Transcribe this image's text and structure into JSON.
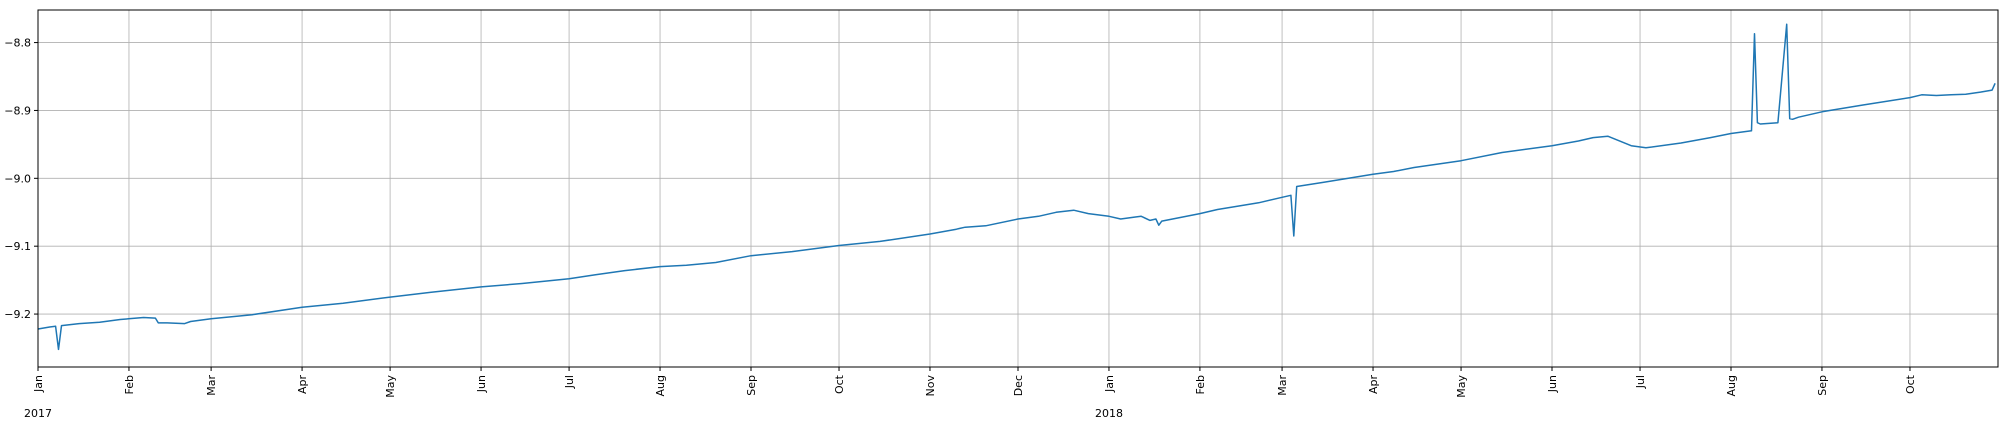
{
  "chart_data": {
    "type": "line",
    "title": "",
    "xlabel": "",
    "ylabel": "",
    "grid": true,
    "legend": "none",
    "colors": {
      "line": "#1f77b4",
      "grid": "#b0b0b0",
      "axes": "#000000"
    },
    "xlim": [
      "2017-01-01",
      "2018-10-31"
    ],
    "ylim": [
      -9.278,
      -8.752
    ],
    "yticks": [
      {
        "value": -8.8,
        "label": "−8.8"
      },
      {
        "value": -8.9,
        "label": "−8.9"
      },
      {
        "value": -9.0,
        "label": "−9.0"
      },
      {
        "value": -9.1,
        "label": "−9.1"
      },
      {
        "value": -9.2,
        "label": "−9.2"
      }
    ],
    "xticks": [
      {
        "date": "2017-01-01",
        "label": "Jan"
      },
      {
        "date": "2017-02-01",
        "label": "Feb"
      },
      {
        "date": "2017-03-01",
        "label": "Mar"
      },
      {
        "date": "2017-04-01",
        "label": "Apr"
      },
      {
        "date": "2017-05-01",
        "label": "May"
      },
      {
        "date": "2017-06-01",
        "label": "Jun"
      },
      {
        "date": "2017-07-01",
        "label": "Jul"
      },
      {
        "date": "2017-08-01",
        "label": "Aug"
      },
      {
        "date": "2017-09-01",
        "label": "Sep"
      },
      {
        "date": "2017-10-01",
        "label": "Oct"
      },
      {
        "date": "2017-11-01",
        "label": "Nov"
      },
      {
        "date": "2017-12-01",
        "label": "Dec"
      },
      {
        "date": "2018-01-01",
        "label": "Jan"
      },
      {
        "date": "2018-02-01",
        "label": "Feb"
      },
      {
        "date": "2018-03-01",
        "label": "Mar"
      },
      {
        "date": "2018-04-01",
        "label": "Apr"
      },
      {
        "date": "2018-05-01",
        "label": "May"
      },
      {
        "date": "2018-06-01",
        "label": "Jun"
      },
      {
        "date": "2018-07-01",
        "label": "Jul"
      },
      {
        "date": "2018-08-01",
        "label": "Aug"
      },
      {
        "date": "2018-09-01",
        "label": "Sep"
      },
      {
        "date": "2018-10-01",
        "label": "Oct"
      }
    ],
    "year_labels": [
      {
        "date": "2017-01-01",
        "label": "2017"
      },
      {
        "date": "2018-01-01",
        "label": "2018"
      }
    ],
    "series": [
      {
        "x": [
          "2017-01-01",
          "2017-01-05",
          "2017-01-07",
          "2017-01-08",
          "2017-01-09",
          "2017-01-15",
          "2017-01-22",
          "2017-01-29",
          "2017-02-06",
          "2017-02-10",
          "2017-02-11",
          "2017-02-14",
          "2017-02-20",
          "2017-02-22",
          "2017-03-01",
          "2017-03-15",
          "2017-04-01",
          "2017-04-15",
          "2017-05-01",
          "2017-05-15",
          "2017-06-01",
          "2017-06-15",
          "2017-07-01",
          "2017-07-10",
          "2017-07-20",
          "2017-08-01",
          "2017-08-10",
          "2017-08-20",
          "2017-09-01",
          "2017-09-15",
          "2017-10-01",
          "2017-10-15",
          "2017-11-01",
          "2017-11-10",
          "2017-11-11",
          "2017-11-13",
          "2017-11-20",
          "2017-12-01",
          "2017-12-08",
          "2017-12-14",
          "2017-12-20",
          "2017-12-25",
          "2018-01-01",
          "2018-01-05",
          "2018-01-10",
          "2018-01-12",
          "2018-01-15",
          "2018-01-17",
          "2018-01-18",
          "2018-01-19",
          "2018-02-01",
          "2018-02-07",
          "2018-02-14",
          "2018-02-21",
          "2018-03-01",
          "2018-03-04",
          "2018-03-05",
          "2018-03-06",
          "2018-03-15",
          "2018-04-01",
          "2018-04-08",
          "2018-04-15",
          "2018-05-01",
          "2018-05-15",
          "2018-06-01",
          "2018-06-10",
          "2018-06-15",
          "2018-06-20",
          "2018-06-28",
          "2018-07-03",
          "2018-07-15",
          "2018-07-25",
          "2018-08-01",
          "2018-08-08",
          "2018-08-09",
          "2018-08-10",
          "2018-08-11",
          "2018-08-17",
          "2018-08-20",
          "2018-08-21",
          "2018-08-22",
          "2018-08-24",
          "2018-09-01",
          "2018-09-15",
          "2018-10-01",
          "2018-10-05",
          "2018-10-10",
          "2018-10-15",
          "2018-10-20",
          "2018-10-25",
          "2018-10-29",
          "2018-10-30"
        ],
        "y": [
          -9.222,
          -9.219,
          -9.218,
          -9.252,
          -9.217,
          -9.214,
          -9.212,
          -9.208,
          -9.205,
          -9.206,
          -9.213,
          -9.213,
          -9.214,
          -9.211,
          -9.207,
          -9.201,
          -9.19,
          -9.184,
          -9.175,
          -9.168,
          -9.16,
          -9.155,
          -9.148,
          -9.142,
          -9.136,
          -9.13,
          -9.128,
          -9.124,
          -9.114,
          -9.108,
          -9.099,
          -9.093,
          -9.082,
          -9.075,
          -9.074,
          -9.072,
          -9.07,
          -9.06,
          -9.056,
          -9.05,
          -9.047,
          -9.052,
          -9.056,
          -9.06,
          -9.057,
          -9.056,
          -9.062,
          -9.06,
          -9.069,
          -9.063,
          -9.052,
          -9.046,
          -9.041,
          -9.036,
          -9.028,
          -9.025,
          -9.085,
          -9.012,
          -9.006,
          -8.994,
          -8.99,
          -8.984,
          -8.974,
          -8.962,
          -8.952,
          -8.945,
          -8.94,
          -8.938,
          -8.952,
          -8.955,
          -8.948,
          -8.94,
          -8.934,
          -8.93,
          -8.787,
          -8.918,
          -8.92,
          -8.918,
          -8.773,
          -8.912,
          -8.913,
          -8.91,
          -8.902,
          -8.892,
          -8.881,
          -8.877,
          -8.878,
          -8.877,
          -8.876,
          -8.873,
          -8.87,
          -8.86
        ]
      }
    ]
  }
}
